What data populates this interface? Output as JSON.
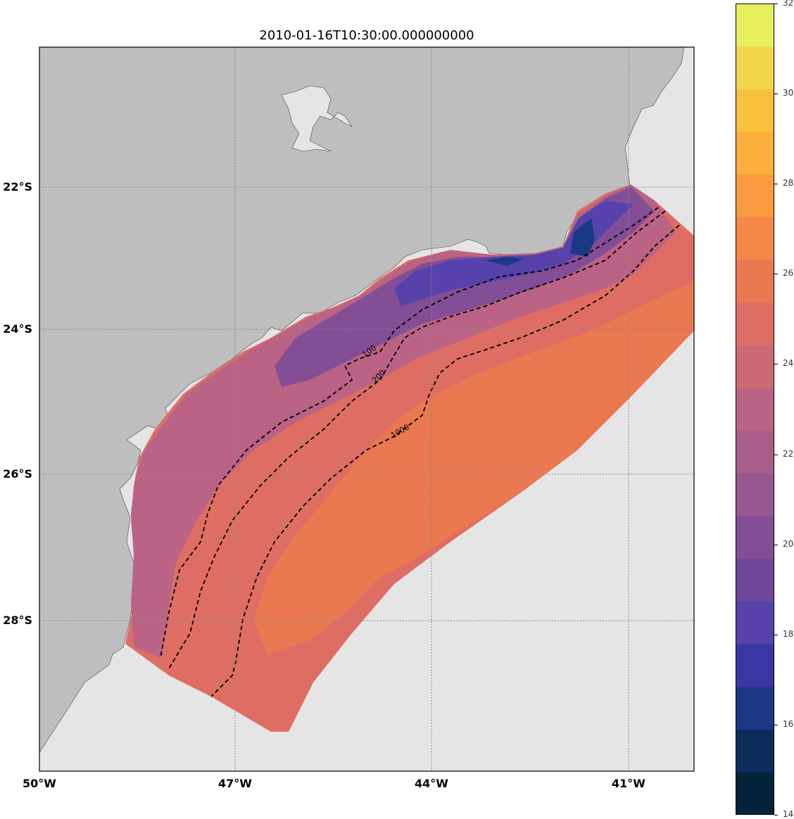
{
  "title": "2010-01-16T10:30:00.000000000",
  "map": {
    "extent": {
      "lon_min": -50,
      "lon_max": -40,
      "lat_min": -30.3,
      "lat_max": -20
    },
    "lat_ticks": [
      {
        "label": "22°S",
        "value": -22
      },
      {
        "label": "24°S",
        "value": -24
      },
      {
        "label": "26°S",
        "value": -26
      },
      {
        "label": "28°S",
        "value": -28
      }
    ],
    "lon_ticks": [
      {
        "label": "50°W",
        "value": -50
      },
      {
        "label": "47°W",
        "value": -47
      },
      {
        "label": "44°W",
        "value": -44
      },
      {
        "label": "41°W",
        "value": -41
      }
    ],
    "isobath_labels": [
      "100",
      "200",
      "1000"
    ],
    "colors": {
      "land": "#bebebe",
      "ocean": "#e5e5e5",
      "grid": "#888888"
    }
  },
  "colorbar": {
    "ticks": [
      "14",
      "16",
      "18",
      "20",
      "22",
      "24",
      "26",
      "28",
      "30",
      "32"
    ],
    "min": 14,
    "max": 32,
    "levels": [
      "#03243a",
      "#0b2d5c",
      "#1b3983",
      "#3937a3",
      "#5742ab",
      "#6e479c",
      "#834e96",
      "#975891",
      "#a95e89",
      "#bb6384",
      "#cb6a75",
      "#de6e64",
      "#ea7850",
      "#f48648",
      "#fa9a3f",
      "#fbae3b",
      "#f8c03c",
      "#f2d64c",
      "#e8ef5c"
    ]
  }
}
